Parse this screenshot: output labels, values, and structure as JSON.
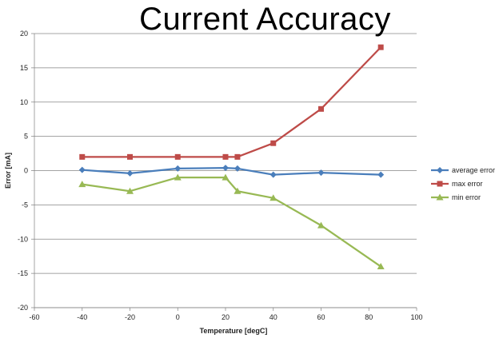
{
  "chart_data": {
    "type": "line",
    "title": "Current Accuracy",
    "xlabel": "Temperature [degC]",
    "ylabel": "Error [mA]",
    "xlim": [
      -60,
      100
    ],
    "ylim": [
      -20,
      20
    ],
    "x_ticks": [
      -60,
      -40,
      -20,
      0,
      20,
      40,
      60,
      80,
      100
    ],
    "y_ticks": [
      -20,
      -15,
      -10,
      -5,
      0,
      5,
      10,
      15,
      20
    ],
    "grid": "horizontal",
    "legend_position": "right",
    "x": [
      -40,
      -20,
      0,
      20,
      25,
      40,
      60,
      85
    ],
    "series": [
      {
        "name": "average error",
        "color": "#4a7ebb",
        "marker": "diamond",
        "values": [
          0.1,
          -0.4,
          0.3,
          0.4,
          0.3,
          -0.6,
          -0.3,
          -0.6
        ]
      },
      {
        "name": "max error",
        "color": "#be4b48",
        "marker": "square",
        "values": [
          2,
          2,
          2,
          2,
          2,
          4,
          9,
          18
        ]
      },
      {
        "name": "min error",
        "color": "#98b954",
        "marker": "triangle",
        "values": [
          -2,
          -3,
          -1,
          -1,
          -3,
          -4,
          -8,
          -14
        ]
      }
    ]
  }
}
